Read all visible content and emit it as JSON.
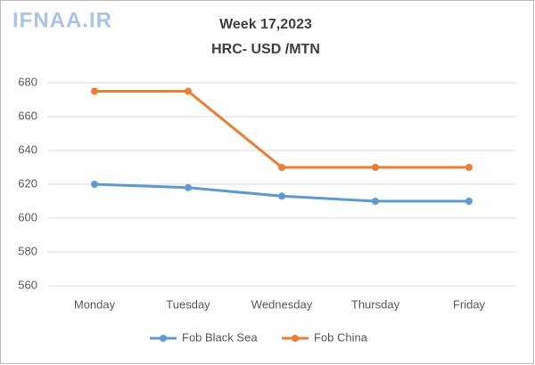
{
  "chart_data": {
    "type": "line",
    "watermark": "IFNAA.IR",
    "title": "Week 17,2023",
    "subtitle": "HRC- USD /MTN",
    "categories": [
      "Monday",
      "Tuesday",
      "Wednesday",
      "Thursday",
      "Friday"
    ],
    "series": [
      {
        "name": "Fob Black Sea",
        "color": "#5b9bd5",
        "values": [
          620,
          618,
          613,
          610,
          610
        ]
      },
      {
        "name": "Fob China",
        "color": "#ed7d31",
        "values": [
          675,
          675,
          630,
          630,
          630
        ]
      }
    ],
    "ylim": [
      560,
      680
    ],
    "yticks": [
      560,
      580,
      600,
      620,
      640,
      660,
      680
    ],
    "grid": true,
    "legend": "bottom"
  }
}
